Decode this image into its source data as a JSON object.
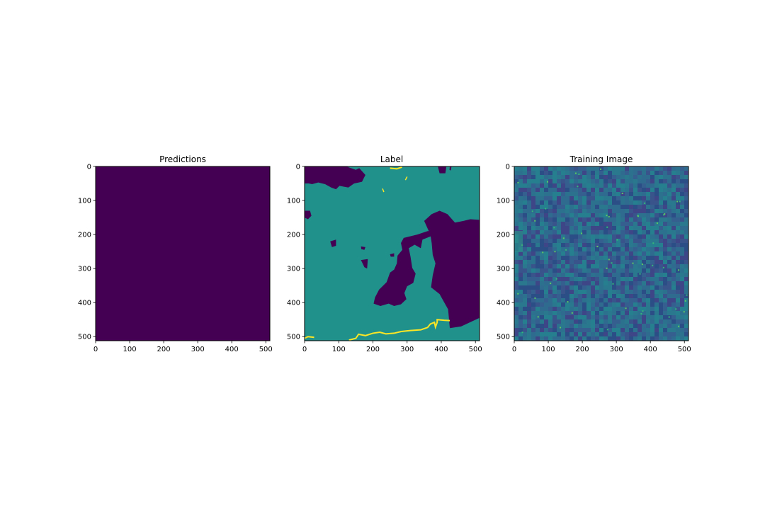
{
  "figure": {
    "background": "#ffffff"
  },
  "chart_data": [
    {
      "type": "heatmap",
      "title": "Predictions",
      "xlabel": "",
      "ylabel": "",
      "xlim": [
        0,
        512
      ],
      "ylim": [
        512,
        0
      ],
      "xticks": [
        0,
        100,
        200,
        300,
        400,
        500
      ],
      "yticks": [
        0,
        100,
        200,
        300,
        400,
        500
      ],
      "colormap": "viridis",
      "content": "uniform class 0",
      "fill_color": "#440154"
    },
    {
      "type": "heatmap",
      "title": "Label",
      "xlabel": "",
      "ylabel": "",
      "xlim": [
        0,
        512
      ],
      "ylim": [
        512,
        0
      ],
      "xticks": [
        0,
        100,
        200,
        300,
        400,
        500
      ],
      "yticks": [
        0,
        100,
        200,
        300,
        400,
        500
      ],
      "colormap": "viridis",
      "classes": [
        {
          "value": 0,
          "color": "#440154"
        },
        {
          "value": 1,
          "color": "#21918c"
        },
        {
          "value": 2,
          "color": "#fde725"
        }
      ]
    },
    {
      "type": "heatmap",
      "title": "Training Image",
      "xlabel": "",
      "ylabel": "",
      "xlim": [
        0,
        512
      ],
      "ylim": [
        512,
        0
      ],
      "xticks": [
        0,
        100,
        200,
        300,
        400,
        500
      ],
      "yticks": [
        0,
        100,
        200,
        300,
        400,
        500
      ],
      "colormap": "viridis",
      "content": "continuous texture"
    }
  ]
}
